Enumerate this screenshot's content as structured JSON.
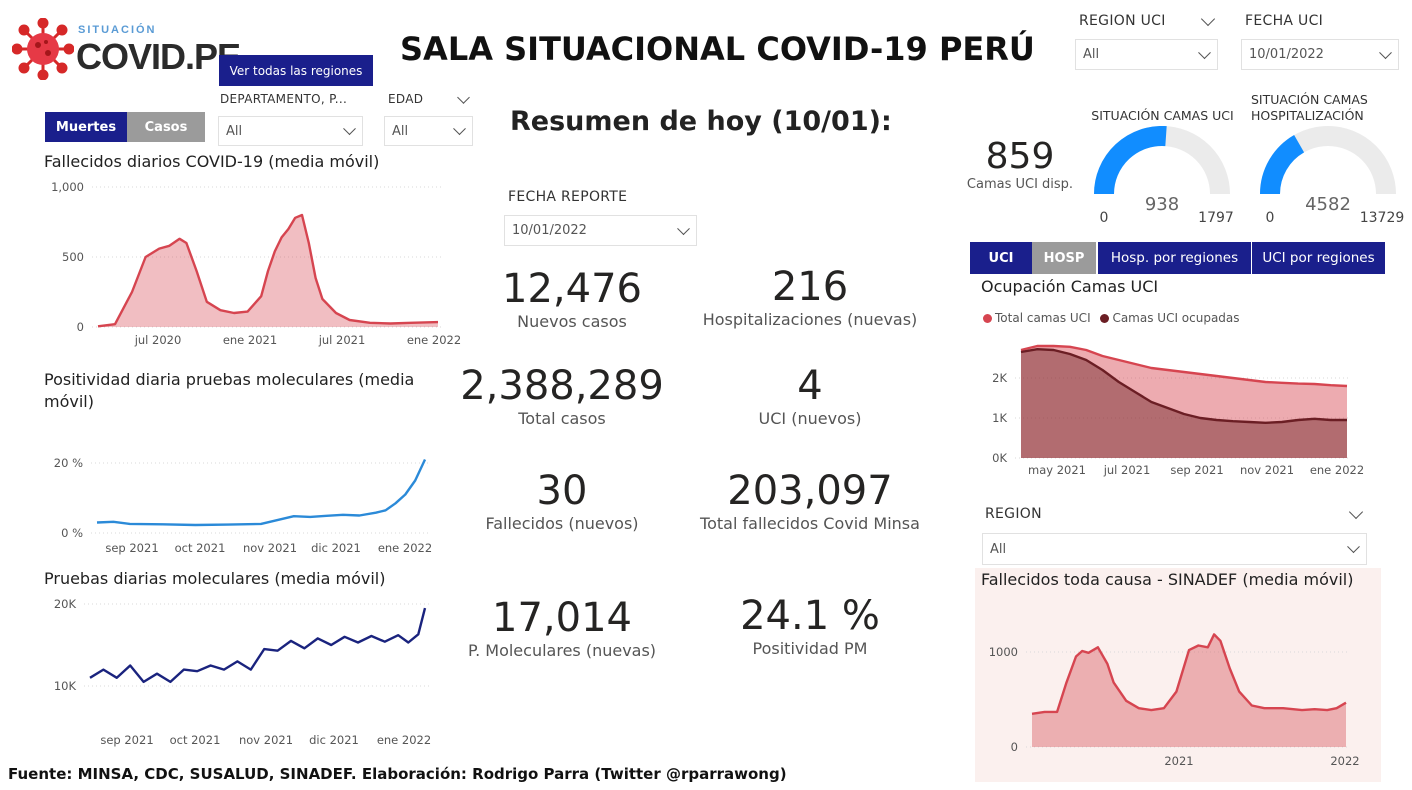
{
  "logo": {
    "sub": "SITUACIÓN",
    "main": "COVID.PE"
  },
  "title": "SALA SITUACIONAL COVID-19 PERÚ",
  "buttons": {
    "ver_regiones": "Ver todas las regiones",
    "muertes": "Muertes",
    "casos": "Casos",
    "uci": "UCI",
    "hosp": "HOSP",
    "hosp_regiones": "Hosp. por regiones",
    "uci_regiones": "UCI por regiones"
  },
  "slicers": {
    "departamento": {
      "label": "DEPARTAMENTO, P...",
      "value": "All"
    },
    "edad": {
      "label": "EDAD",
      "value": "All"
    },
    "region_uci": {
      "label": "REGION UCI",
      "value": "All"
    },
    "fecha_uci": {
      "label": "FECHA UCI",
      "value": "10/01/2022"
    },
    "fecha_reporte": {
      "label": "FECHA REPORTE",
      "value": "10/01/2022"
    },
    "region": {
      "label": "REGION",
      "value": "All"
    }
  },
  "resumen_title": "Resumen de hoy (10/01):",
  "kpis": [
    {
      "value": "12,476",
      "label": "Nuevos casos"
    },
    {
      "value": "216",
      "label": "Hospitalizaciones (nuevas)"
    },
    {
      "value": "2,388,289",
      "label": "Total casos"
    },
    {
      "value": "4",
      "label": "UCI (nuevos)"
    },
    {
      "value": "30",
      "label": "Fallecidos  (nuevos)"
    },
    {
      "value": "203,097",
      "label": "Total fallecidos Covid Minsa"
    },
    {
      "value": "17,014",
      "label": "P. Moleculares (nuevas)"
    },
    {
      "value": "24.1 %",
      "label": "Positividad PM"
    }
  ],
  "camas": {
    "value": "859",
    "label": "Camas UCI disp."
  },
  "gauges": [
    {
      "title": "SITUACIÓN CAMAS UCI",
      "value": 938,
      "min": 0,
      "max": 1797,
      "value_label": "938",
      "min_label": "0",
      "max_label": "1797",
      "color": "#118dff"
    },
    {
      "title": "SITUACIÓN CAMAS HOSPITALIZACIÓN",
      "value": 4582,
      "min": 0,
      "max": 13729,
      "value_label": "4582",
      "min_label": "0",
      "max_label": "13729",
      "color": "#118dff"
    }
  ],
  "footer": "Fuente: MINSA, CDC, SUSALUD, SINADEF. Elaboración: Rodrigo Parra (Twitter @rparrawong)",
  "chart_data": [
    {
      "id": "fallecidos",
      "type": "area",
      "title": "Fallecidos diarios COVID-19 (media móvil)",
      "ylim": [
        0,
        1000
      ],
      "yticks": [
        "0",
        "500",
        "1,000"
      ],
      "xticks": [
        "jul 2020",
        "ene 2021",
        "jul 2021",
        "ene 2022"
      ],
      "x": [
        0,
        0.05,
        0.1,
        0.14,
        0.18,
        0.21,
        0.24,
        0.26,
        0.29,
        0.32,
        0.36,
        0.4,
        0.44,
        0.48,
        0.5,
        0.52,
        0.54,
        0.56,
        0.58,
        0.6,
        0.62,
        0.64,
        0.66,
        0.7,
        0.74,
        0.8,
        0.86,
        0.92,
        1.0
      ],
      "values": [
        5,
        20,
        250,
        500,
        560,
        580,
        630,
        600,
        400,
        180,
        120,
        100,
        110,
        220,
        400,
        540,
        640,
        700,
        780,
        800,
        600,
        350,
        200,
        100,
        50,
        30,
        25,
        30,
        35
      ],
      "color": "#d64550"
    },
    {
      "id": "positividad",
      "type": "line",
      "title": "Positividad diaria pruebas moleculares (media móvil)",
      "ylim": [
        0,
        20
      ],
      "yticks": [
        "0 %",
        "20 %"
      ],
      "xticks": [
        "sep 2021",
        "oct 2021",
        "nov 2021",
        "dic 2021",
        "ene 2022"
      ],
      "x": [
        0,
        0.05,
        0.1,
        0.2,
        0.3,
        0.4,
        0.5,
        0.6,
        0.65,
        0.7,
        0.75,
        0.8,
        0.85,
        0.88,
        0.91,
        0.94,
        0.97,
        1.0
      ],
      "values": [
        3,
        3.2,
        2.6,
        2.5,
        2.3,
        2.4,
        2.6,
        4.8,
        4.6,
        4.9,
        5.2,
        5.0,
        5.8,
        6.5,
        8.5,
        11,
        15,
        21
      ],
      "color": "#2b8ad8"
    },
    {
      "id": "pruebas",
      "type": "line",
      "title": "Pruebas diarias moleculares (media móvil)",
      "ylim": [
        10000,
        20000
      ],
      "yticks": [
        "10K",
        "20K"
      ],
      "xticks": [
        "sep 2021",
        "oct 2021",
        "nov 2021",
        "dic 2021",
        "ene 2022"
      ],
      "x": [
        0,
        0.04,
        0.08,
        0.12,
        0.16,
        0.2,
        0.24,
        0.28,
        0.32,
        0.36,
        0.4,
        0.44,
        0.48,
        0.52,
        0.56,
        0.6,
        0.64,
        0.68,
        0.72,
        0.76,
        0.8,
        0.84,
        0.88,
        0.92,
        0.95,
        0.98,
        1.0
      ],
      "values": [
        11000,
        12000,
        11000,
        12500,
        10500,
        11500,
        10500,
        12000,
        11800,
        12500,
        12000,
        13000,
        12000,
        14500,
        14300,
        15500,
        14600,
        15800,
        15000,
        16000,
        15300,
        16100,
        15400,
        16200,
        15300,
        16300,
        19500
      ],
      "color": "#1a237e"
    },
    {
      "id": "ocupacion",
      "type": "area",
      "title": "Ocupación Camas UCI",
      "legend": [
        "Total camas UCI",
        "Camas UCI ocupadas"
      ],
      "ylim": [
        0,
        3000
      ],
      "yticks": [
        "0K",
        "1K",
        "2K"
      ],
      "xticks": [
        "may 2021",
        "jul 2021",
        "sep 2021",
        "nov 2021",
        "ene 2022"
      ],
      "x": [
        0,
        0.05,
        0.1,
        0.15,
        0.2,
        0.25,
        0.3,
        0.35,
        0.4,
        0.45,
        0.5,
        0.55,
        0.6,
        0.65,
        0.7,
        0.75,
        0.8,
        0.85,
        0.9,
        0.95,
        1.0
      ],
      "series": [
        {
          "name": "Total camas UCI",
          "values": [
            2700,
            2800,
            2800,
            2780,
            2700,
            2550,
            2450,
            2350,
            2250,
            2200,
            2150,
            2100,
            2050,
            2000,
            1950,
            1900,
            1880,
            1860,
            1850,
            1820,
            1800
          ],
          "color": "#d64550"
        },
        {
          "name": "Camas UCI ocupadas",
          "values": [
            2650,
            2720,
            2700,
            2600,
            2450,
            2200,
            1900,
            1650,
            1400,
            1250,
            1100,
            1000,
            950,
            920,
            900,
            880,
            900,
            950,
            980,
            950,
            950
          ],
          "color": "#6b1e24"
        }
      ]
    },
    {
      "id": "sinadef",
      "type": "area",
      "title": "Fallecidos toda causa - SINADEF (media móvil)",
      "ylim": [
        0,
        1300
      ],
      "yticks": [
        "0",
        "1000"
      ],
      "xticks": [
        "2021",
        "2022"
      ],
      "x": [
        0,
        0.04,
        0.08,
        0.11,
        0.14,
        0.16,
        0.18,
        0.21,
        0.24,
        0.26,
        0.3,
        0.34,
        0.38,
        0.42,
        0.46,
        0.5,
        0.53,
        0.56,
        0.58,
        0.6,
        0.63,
        0.66,
        0.7,
        0.74,
        0.8,
        0.86,
        0.9,
        0.94,
        0.97,
        1.0
      ],
      "values": [
        360,
        380,
        380,
        700,
        980,
        1040,
        1020,
        1080,
        900,
        700,
        500,
        420,
        400,
        420,
        600,
        1050,
        1100,
        1080,
        1220,
        1150,
        850,
        600,
        450,
        420,
        420,
        400,
        410,
        400,
        420,
        480
      ],
      "color": "#d64550"
    }
  ]
}
